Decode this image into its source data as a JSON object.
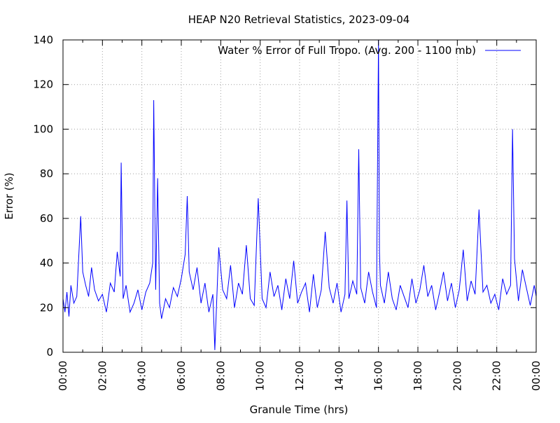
{
  "chart_data": {
    "type": "line",
    "title": "HEAP N20 Retrieval Statistics, 2023-09-04",
    "xlabel": "Granule Time (hrs)",
    "ylabel": "Error (%)",
    "xlim": [
      0,
      24
    ],
    "ylim": [
      0,
      140
    ],
    "grid": true,
    "legend_position": "top-right",
    "x_ticks": [
      {
        "value": 0,
        "label": "00:00"
      },
      {
        "value": 2,
        "label": "02:00"
      },
      {
        "value": 4,
        "label": "04:00"
      },
      {
        "value": 6,
        "label": "06:00"
      },
      {
        "value": 8,
        "label": "08:00"
      },
      {
        "value": 10,
        "label": "10:00"
      },
      {
        "value": 12,
        "label": "12:00"
      },
      {
        "value": 14,
        "label": "14:00"
      },
      {
        "value": 16,
        "label": "16:00"
      },
      {
        "value": 18,
        "label": "18:00"
      },
      {
        "value": 20,
        "label": "20:00"
      },
      {
        "value": 22,
        "label": "22:00"
      },
      {
        "value": 24,
        "label": "00:00"
      }
    ],
    "y_ticks": [
      {
        "value": 0,
        "label": "0"
      },
      {
        "value": 20,
        "label": "20"
      },
      {
        "value": 40,
        "label": "40"
      },
      {
        "value": 60,
        "label": "60"
      },
      {
        "value": 80,
        "label": "80"
      },
      {
        "value": 100,
        "label": "100"
      },
      {
        "value": 120,
        "label": "120"
      },
      {
        "value": 140,
        "label": "140"
      }
    ],
    "series": [
      {
        "name": "Water % Error of Full Tropo. (Avg. 200 - 1100 mb)",
        "color": "#0000ff",
        "x": [
          0.0,
          0.1,
          0.2,
          0.3,
          0.4,
          0.55,
          0.7,
          0.8,
          0.9,
          1.0,
          1.15,
          1.3,
          1.45,
          1.6,
          1.8,
          2.0,
          2.2,
          2.4,
          2.6,
          2.75,
          2.9,
          2.95,
          3.05,
          3.2,
          3.4,
          3.6,
          3.8,
          4.0,
          4.2,
          4.4,
          4.55,
          4.6,
          4.7,
          4.8,
          4.9,
          5.0,
          5.2,
          5.4,
          5.6,
          5.8,
          6.0,
          6.2,
          6.3,
          6.4,
          6.6,
          6.8,
          7.0,
          7.2,
          7.4,
          7.6,
          7.7,
          7.9,
          8.1,
          8.3,
          8.5,
          8.7,
          8.9,
          9.1,
          9.3,
          9.5,
          9.7,
          9.9,
          10.1,
          10.3,
          10.5,
          10.7,
          10.9,
          11.1,
          11.3,
          11.5,
          11.7,
          11.9,
          12.1,
          12.3,
          12.5,
          12.7,
          12.9,
          13.1,
          13.3,
          13.5,
          13.7,
          13.9,
          14.1,
          14.3,
          14.4,
          14.5,
          14.7,
          14.9,
          15.0,
          15.1,
          15.3,
          15.5,
          15.7,
          15.9,
          16.0,
          16.05,
          16.1,
          16.3,
          16.5,
          16.7,
          16.9,
          17.1,
          17.3,
          17.5,
          17.7,
          17.9,
          18.1,
          18.3,
          18.5,
          18.7,
          18.9,
          19.1,
          19.3,
          19.5,
          19.7,
          19.9,
          20.1,
          20.3,
          20.5,
          20.7,
          20.9,
          21.1,
          21.3,
          21.5,
          21.7,
          21.9,
          22.1,
          22.3,
          22.5,
          22.7,
          22.8,
          22.9,
          23.1,
          23.3,
          23.5,
          23.7,
          23.9,
          24.0
        ],
        "values": [
          24,
          18,
          27,
          16,
          30,
          22,
          25,
          43,
          61,
          36,
          30,
          25,
          38,
          28,
          23,
          26,
          18,
          31,
          27,
          45,
          34,
          85,
          24,
          30,
          18,
          22,
          28,
          19,
          27,
          31,
          40,
          113,
          28,
          78,
          22,
          15,
          24,
          20,
          29,
          25,
          33,
          44,
          70,
          36,
          28,
          38,
          22,
          31,
          18,
          26,
          1,
          47,
          28,
          24,
          39,
          20,
          31,
          26,
          48,
          24,
          21,
          69,
          24,
          20,
          36,
          25,
          30,
          19,
          33,
          24,
          41,
          22,
          27,
          31,
          18,
          35,
          20,
          28,
          54,
          29,
          22,
          31,
          18,
          26,
          68,
          24,
          32,
          26,
          91,
          29,
          22,
          36,
          27,
          20,
          140,
          45,
          30,
          22,
          36,
          24,
          19,
          30,
          25,
          20,
          33,
          22,
          28,
          39,
          25,
          30,
          19,
          27,
          36,
          23,
          31,
          20,
          28,
          46,
          23,
          32,
          26,
          64,
          27,
          30,
          22,
          26,
          19,
          33,
          26,
          30,
          100,
          42,
          23,
          37,
          29,
          21,
          30,
          25
        ]
      }
    ]
  }
}
